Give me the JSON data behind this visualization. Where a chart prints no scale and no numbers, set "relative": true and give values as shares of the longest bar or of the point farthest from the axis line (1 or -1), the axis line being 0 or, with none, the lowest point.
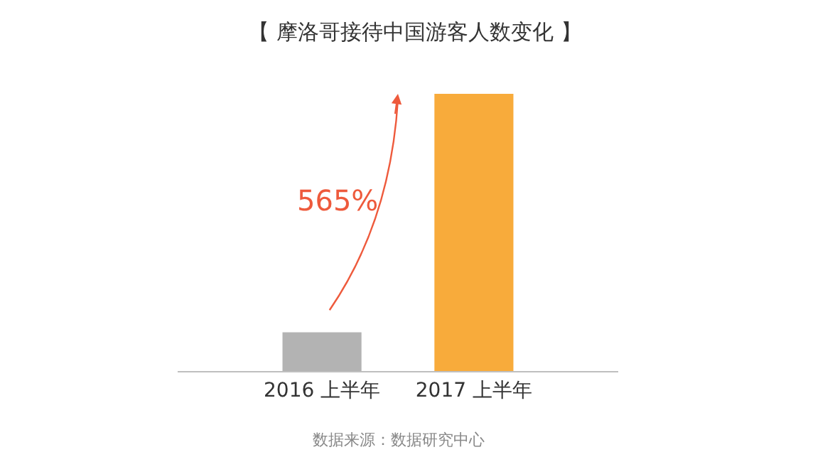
{
  "chart_data": {
    "type": "bar",
    "relative": true,
    "title": "【 摩洛哥接待中国游客人数变化 】",
    "categories": [
      "2016 上半年",
      "2017 上半年"
    ],
    "values": [
      0.14,
      1
    ],
    "colors": [
      "#b3b3b3",
      "#f8ab3b"
    ],
    "annotations": [
      "565%",
      "数据来源：数据研究中心"
    ]
  }
}
